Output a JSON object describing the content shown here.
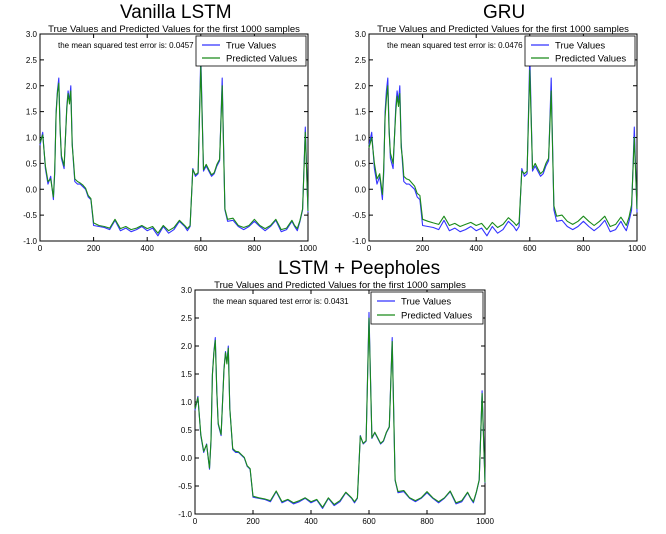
{
  "panels": [
    {
      "heading": "Vanilla LSTM"
    },
    {
      "heading": "GRU"
    },
    {
      "heading": "LSTM + Peepholes"
    }
  ],
  "colors": {
    "true_values": "#3333ff",
    "predicted_values": "#1a8a1a",
    "axes": "#000000"
  },
  "chart_data": [
    {
      "type": "line",
      "title": "True Values and Predicted Values for the first 1000 samples",
      "annotation": "the mean squared test error is: 0.0457",
      "legend_position": "top-right",
      "xlim": [
        0,
        1000
      ],
      "ylim": [
        -1.0,
        3.0
      ],
      "x_ticks": [
        "0",
        "200",
        "400",
        "600",
        "800",
        "1000"
      ],
      "y_ticks": [
        "-1.0",
        "-0.5",
        "0.0",
        "0.5",
        "1.0",
        "1.5",
        "2.0",
        "2.5",
        "3.0"
      ],
      "x": [
        0,
        10,
        20,
        30,
        40,
        50,
        55,
        60,
        65,
        70,
        75,
        80,
        90,
        100,
        105,
        110,
        115,
        120,
        125,
        130,
        140,
        150,
        160,
        170,
        180,
        190,
        200,
        220,
        240,
        260,
        280,
        300,
        320,
        340,
        360,
        380,
        400,
        420,
        440,
        460,
        480,
        500,
        520,
        540,
        550,
        560,
        570,
        580,
        590,
        600,
        610,
        620,
        630,
        640,
        650,
        660,
        670,
        680,
        690,
        700,
        720,
        740,
        760,
        780,
        800,
        820,
        840,
        860,
        880,
        900,
        920,
        940,
        950,
        960,
        970,
        980,
        990,
        1000
      ],
      "series": [
        {
          "name": "True Values",
          "values": [
            0.85,
            1.1,
            0.4,
            0.1,
            0.25,
            -0.2,
            0.3,
            1.5,
            1.9,
            2.15,
            1.2,
            0.6,
            0.4,
            1.6,
            1.9,
            1.7,
            2.0,
            0.9,
            0.5,
            0.15,
            0.1,
            0.1,
            0.05,
            0.0,
            -0.15,
            -0.2,
            -0.7,
            -0.72,
            -0.74,
            -0.78,
            -0.6,
            -0.8,
            -0.75,
            -0.82,
            -0.78,
            -0.72,
            -0.8,
            -0.75,
            -0.9,
            -0.72,
            -0.85,
            -0.78,
            -0.62,
            -0.72,
            -0.8,
            -0.72,
            0.4,
            0.25,
            0.3,
            2.6,
            0.35,
            0.45,
            0.35,
            0.25,
            0.3,
            0.45,
            0.55,
            2.15,
            -0.4,
            -0.62,
            -0.6,
            -0.72,
            -0.78,
            -0.72,
            -0.62,
            -0.72,
            -0.8,
            -0.72,
            -0.6,
            -0.82,
            -0.78,
            -0.62,
            -0.72,
            -0.8,
            -0.62,
            -0.4,
            1.2,
            -0.45
          ]
        },
        {
          "name": "Predicted Values",
          "values": [
            0.9,
            1.05,
            0.45,
            0.15,
            0.2,
            -0.15,
            0.35,
            1.45,
            1.85,
            2.05,
            1.15,
            0.65,
            0.45,
            1.55,
            1.85,
            1.65,
            1.9,
            0.85,
            0.55,
            0.2,
            0.15,
            0.12,
            0.08,
            0.02,
            -0.12,
            -0.18,
            -0.65,
            -0.7,
            -0.72,
            -0.75,
            -0.58,
            -0.76,
            -0.72,
            -0.78,
            -0.75,
            -0.7,
            -0.76,
            -0.72,
            -0.85,
            -0.7,
            -0.8,
            -0.74,
            -0.6,
            -0.7,
            -0.76,
            -0.7,
            0.38,
            0.28,
            0.32,
            2.4,
            0.38,
            0.48,
            0.38,
            0.28,
            0.32,
            0.48,
            0.58,
            2.0,
            -0.38,
            -0.58,
            -0.56,
            -0.7,
            -0.74,
            -0.7,
            -0.58,
            -0.7,
            -0.76,
            -0.7,
            -0.58,
            -0.78,
            -0.75,
            -0.6,
            -0.7,
            -0.76,
            -0.6,
            -0.38,
            1.1,
            -0.42
          ]
        }
      ]
    },
    {
      "type": "line",
      "title": "True Values and Predicted Values for the first 1000 samples",
      "annotation": "the mean squared test error is: 0.0476",
      "legend_position": "top-right",
      "xlim": [
        0,
        1000
      ],
      "ylim": [
        -1.0,
        3.0
      ],
      "x_ticks": [
        "0",
        "200",
        "400",
        "600",
        "800",
        "1000"
      ],
      "y_ticks": [
        "-1.0",
        "-0.5",
        "0.0",
        "0.5",
        "1.0",
        "1.5",
        "2.0",
        "2.5",
        "3.0"
      ],
      "x": [
        0,
        10,
        20,
        30,
        40,
        50,
        55,
        60,
        65,
        70,
        75,
        80,
        90,
        100,
        105,
        110,
        115,
        120,
        125,
        130,
        140,
        150,
        160,
        170,
        180,
        190,
        200,
        220,
        240,
        260,
        280,
        300,
        320,
        340,
        360,
        380,
        400,
        420,
        440,
        460,
        480,
        500,
        520,
        540,
        550,
        560,
        570,
        580,
        590,
        600,
        610,
        620,
        630,
        640,
        650,
        660,
        670,
        680,
        690,
        700,
        720,
        740,
        760,
        780,
        800,
        820,
        840,
        860,
        880,
        900,
        920,
        940,
        950,
        960,
        970,
        980,
        990,
        1000
      ],
      "series": [
        {
          "name": "True Values",
          "values": [
            0.85,
            1.1,
            0.4,
            0.1,
            0.25,
            -0.2,
            0.3,
            1.5,
            1.9,
            2.15,
            1.2,
            0.6,
            0.4,
            1.6,
            1.9,
            1.7,
            2.0,
            0.9,
            0.5,
            0.15,
            0.1,
            0.1,
            0.05,
            0.0,
            -0.15,
            -0.2,
            -0.7,
            -0.72,
            -0.74,
            -0.78,
            -0.6,
            -0.8,
            -0.75,
            -0.82,
            -0.78,
            -0.72,
            -0.8,
            -0.75,
            -0.9,
            -0.72,
            -0.85,
            -0.78,
            -0.62,
            -0.72,
            -0.8,
            -0.72,
            0.4,
            0.25,
            0.3,
            2.6,
            0.35,
            0.45,
            0.35,
            0.25,
            0.3,
            0.45,
            0.55,
            2.15,
            -0.4,
            -0.62,
            -0.6,
            -0.72,
            -0.78,
            -0.72,
            -0.62,
            -0.72,
            -0.8,
            -0.72,
            -0.6,
            -0.82,
            -0.78,
            -0.62,
            -0.72,
            -0.8,
            -0.62,
            -0.4,
            1.2,
            -0.45
          ]
        },
        {
          "name": "Predicted Values",
          "values": [
            0.8,
            1.0,
            0.5,
            0.2,
            0.3,
            -0.1,
            0.4,
            1.4,
            1.75,
            2.0,
            1.1,
            0.7,
            0.5,
            1.5,
            1.8,
            1.6,
            1.85,
            0.8,
            0.6,
            0.25,
            0.2,
            0.18,
            0.12,
            0.06,
            -0.08,
            -0.12,
            -0.58,
            -0.62,
            -0.65,
            -0.68,
            -0.52,
            -0.7,
            -0.66,
            -0.72,
            -0.68,
            -0.64,
            -0.7,
            -0.66,
            -0.78,
            -0.64,
            -0.74,
            -0.68,
            -0.55,
            -0.64,
            -0.7,
            -0.64,
            0.35,
            0.3,
            0.35,
            2.3,
            0.4,
            0.5,
            0.4,
            0.3,
            0.35,
            0.5,
            0.6,
            1.9,
            -0.32,
            -0.52,
            -0.5,
            -0.62,
            -0.68,
            -0.62,
            -0.52,
            -0.62,
            -0.7,
            -0.62,
            -0.52,
            -0.72,
            -0.68,
            -0.54,
            -0.62,
            -0.7,
            -0.54,
            -0.3,
            1.0,
            -0.38
          ]
        }
      ]
    },
    {
      "type": "line",
      "title": "True Values and Predicted Values for the first 1000 samples",
      "annotation": "the mean squared test error is: 0.0431",
      "legend_position": "top-right",
      "xlim": [
        0,
        1000
      ],
      "ylim": [
        -1.0,
        3.0
      ],
      "x_ticks": [
        "0",
        "200",
        "400",
        "600",
        "800",
        "1000"
      ],
      "y_ticks": [
        "-1.0",
        "-0.5",
        "0.0",
        "0.5",
        "1.0",
        "1.5",
        "2.0",
        "2.5",
        "3.0"
      ],
      "x": [
        0,
        10,
        20,
        30,
        40,
        50,
        55,
        60,
        65,
        70,
        75,
        80,
        90,
        100,
        105,
        110,
        115,
        120,
        125,
        130,
        140,
        150,
        160,
        170,
        180,
        190,
        200,
        220,
        240,
        260,
        280,
        300,
        320,
        340,
        360,
        380,
        400,
        420,
        440,
        460,
        480,
        500,
        520,
        540,
        550,
        560,
        570,
        580,
        590,
        600,
        610,
        620,
        630,
        640,
        650,
        660,
        670,
        680,
        690,
        700,
        720,
        740,
        760,
        780,
        800,
        820,
        840,
        860,
        880,
        900,
        920,
        940,
        950,
        960,
        970,
        980,
        990,
        1000
      ],
      "series": [
        {
          "name": "True Values",
          "values": [
            0.85,
            1.1,
            0.4,
            0.1,
            0.25,
            -0.2,
            0.3,
            1.5,
            1.9,
            2.15,
            1.2,
            0.6,
            0.4,
            1.6,
            1.9,
            1.7,
            2.0,
            0.9,
            0.5,
            0.15,
            0.1,
            0.1,
            0.05,
            0.0,
            -0.15,
            -0.2,
            -0.7,
            -0.72,
            -0.74,
            -0.78,
            -0.6,
            -0.8,
            -0.75,
            -0.82,
            -0.78,
            -0.72,
            -0.8,
            -0.75,
            -0.9,
            -0.72,
            -0.85,
            -0.78,
            -0.62,
            -0.72,
            -0.8,
            -0.72,
            0.4,
            0.25,
            0.3,
            2.6,
            0.35,
            0.45,
            0.35,
            0.25,
            0.3,
            0.45,
            0.55,
            2.15,
            -0.4,
            -0.62,
            -0.6,
            -0.72,
            -0.78,
            -0.72,
            -0.62,
            -0.72,
            -0.8,
            -0.72,
            -0.6,
            -0.82,
            -0.78,
            -0.62,
            -0.72,
            -0.8,
            -0.62,
            -0.4,
            1.2,
            -0.45
          ]
        },
        {
          "name": "Predicted Values",
          "values": [
            0.88,
            1.08,
            0.42,
            0.12,
            0.24,
            -0.18,
            0.32,
            1.48,
            1.88,
            2.1,
            1.18,
            0.62,
            0.42,
            1.58,
            1.88,
            1.68,
            1.96,
            0.88,
            0.52,
            0.17,
            0.12,
            0.11,
            0.06,
            0.01,
            -0.14,
            -0.19,
            -0.68,
            -0.71,
            -0.73,
            -0.76,
            -0.59,
            -0.78,
            -0.74,
            -0.8,
            -0.76,
            -0.71,
            -0.78,
            -0.74,
            -0.88,
            -0.71,
            -0.83,
            -0.76,
            -0.61,
            -0.71,
            -0.78,
            -0.71,
            0.39,
            0.26,
            0.31,
            2.5,
            0.36,
            0.46,
            0.36,
            0.26,
            0.31,
            0.46,
            0.56,
            2.08,
            -0.39,
            -0.6,
            -0.58,
            -0.71,
            -0.76,
            -0.71,
            -0.6,
            -0.71,
            -0.78,
            -0.71,
            -0.59,
            -0.8,
            -0.76,
            -0.61,
            -0.71,
            -0.78,
            -0.61,
            -0.39,
            1.15,
            -0.44
          ]
        }
      ]
    }
  ]
}
